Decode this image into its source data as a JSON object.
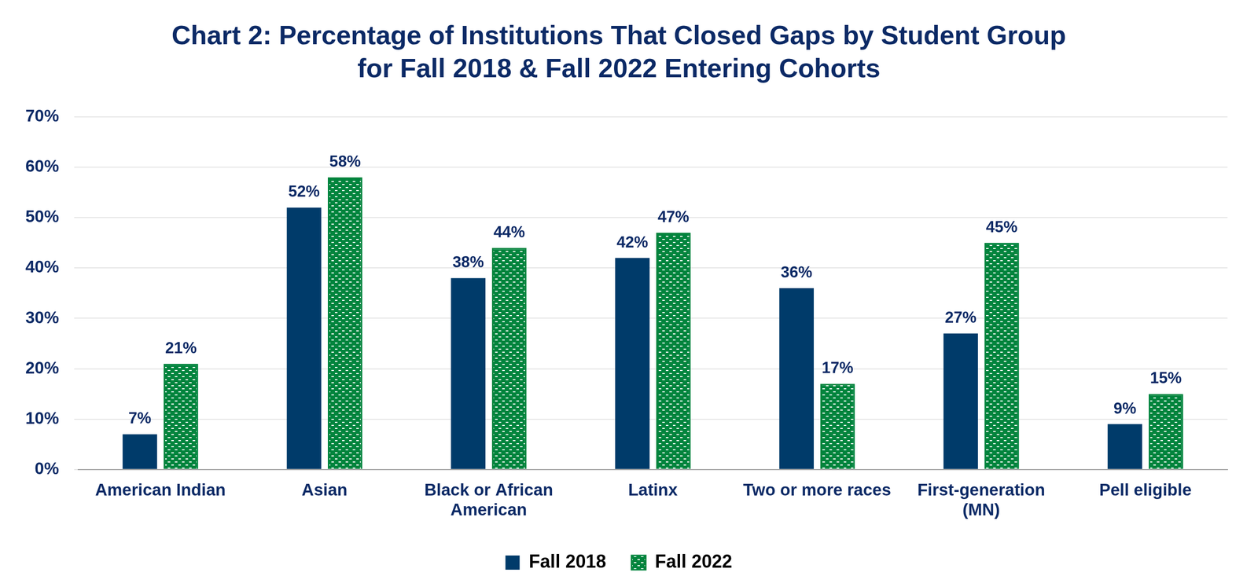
{
  "chart_data": {
    "type": "bar",
    "title": [
      "Chart 2: Percentage of Institutions That Closed Gaps by Student Group",
      "for Fall 2018 & Fall 2022 Entering Cohorts"
    ],
    "categories": [
      "American Indian",
      "Asian",
      "Black or African American",
      "Latinx",
      "Two or more races",
      "First-generation (MN)",
      "Pell eligible"
    ],
    "series": [
      {
        "name": "Fall 2018",
        "color": "#003b6a",
        "values": [
          7,
          52,
          38,
          42,
          36,
          27,
          9
        ],
        "value_labels": [
          "7%",
          "52%",
          "38%",
          "42%",
          "36%",
          "27%",
          "9%"
        ]
      },
      {
        "name": "Fall 2022",
        "color": "#00843d",
        "values": [
          21,
          58,
          44,
          47,
          17,
          45,
          15
        ],
        "value_labels": [
          "21%",
          "58%",
          "44%",
          "47%",
          "17%",
          "45%",
          "15%"
        ]
      }
    ],
    "ylim": [
      0,
      70
    ],
    "yticks": [
      {
        "value": 0,
        "label": "0%"
      },
      {
        "value": 10,
        "label": "10%"
      },
      {
        "value": 20,
        "label": "20%"
      },
      {
        "value": 30,
        "label": "30%"
      },
      {
        "value": 40,
        "label": "40%"
      },
      {
        "value": 50,
        "label": "50%"
      },
      {
        "value": 60,
        "label": "60%"
      },
      {
        "value": 70,
        "label": "70%"
      }
    ],
    "grid": true,
    "legend": "bottom",
    "data_labels": true
  }
}
